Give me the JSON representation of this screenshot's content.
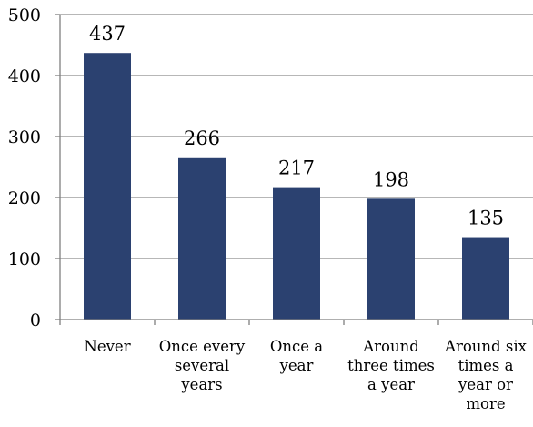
{
  "chart_data": {
    "type": "bar",
    "title": "",
    "xlabel": "",
    "ylabel": "",
    "categories": [
      [
        "Never"
      ],
      [
        "Once every",
        "several",
        "years"
      ],
      [
        "Once a",
        "year"
      ],
      [
        "Around",
        "three times",
        "a year"
      ],
      [
        "Around six",
        "times a",
        "year or",
        "more"
      ]
    ],
    "values": [
      437,
      266,
      217,
      198,
      135
    ],
    "ylim": [
      0,
      500
    ],
    "yticks": [
      0,
      100,
      200,
      300,
      400,
      500
    ],
    "grid": true,
    "legend": "none",
    "colors": {
      "bar": "#2b4170",
      "grid": "#8c8c8c",
      "axis": "#7f7f7f"
    }
  }
}
